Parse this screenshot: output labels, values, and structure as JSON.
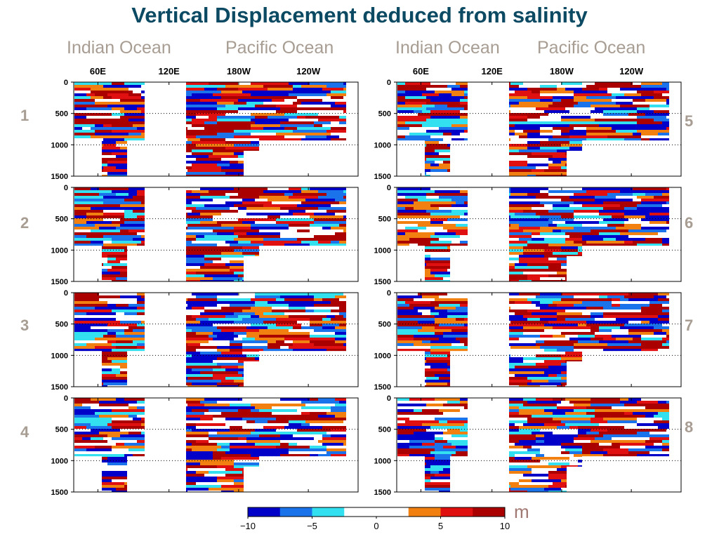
{
  "chart_data": {
    "type": "heatmap",
    "title": "Vertical Displacement deduced from salinity",
    "column_labels": [
      "Indian Ocean",
      "Pacific Ocean",
      "Indian Ocean",
      "Pacific Ocean"
    ],
    "x_ticks": [
      "60E",
      "120E",
      "180W",
      "120W"
    ],
    "y_ticks": [
      0,
      500,
      1000,
      1500
    ],
    "ylim": [
      0,
      1500
    ],
    "panels": [
      "1",
      "2",
      "3",
      "4",
      "5",
      "6",
      "7",
      "8"
    ],
    "colorbar": {
      "ticks": [
        "−10",
        "−5",
        "0",
        "5",
        "10"
      ],
      "range": [
        -10,
        10
      ],
      "unit": "m",
      "colors": [
        "#0000c8",
        "#1a73ea",
        "#33e0f0",
        "#ffffff",
        "#ffffff",
        "#f28010",
        "#e01010",
        "#aa0000"
      ]
    }
  }
}
